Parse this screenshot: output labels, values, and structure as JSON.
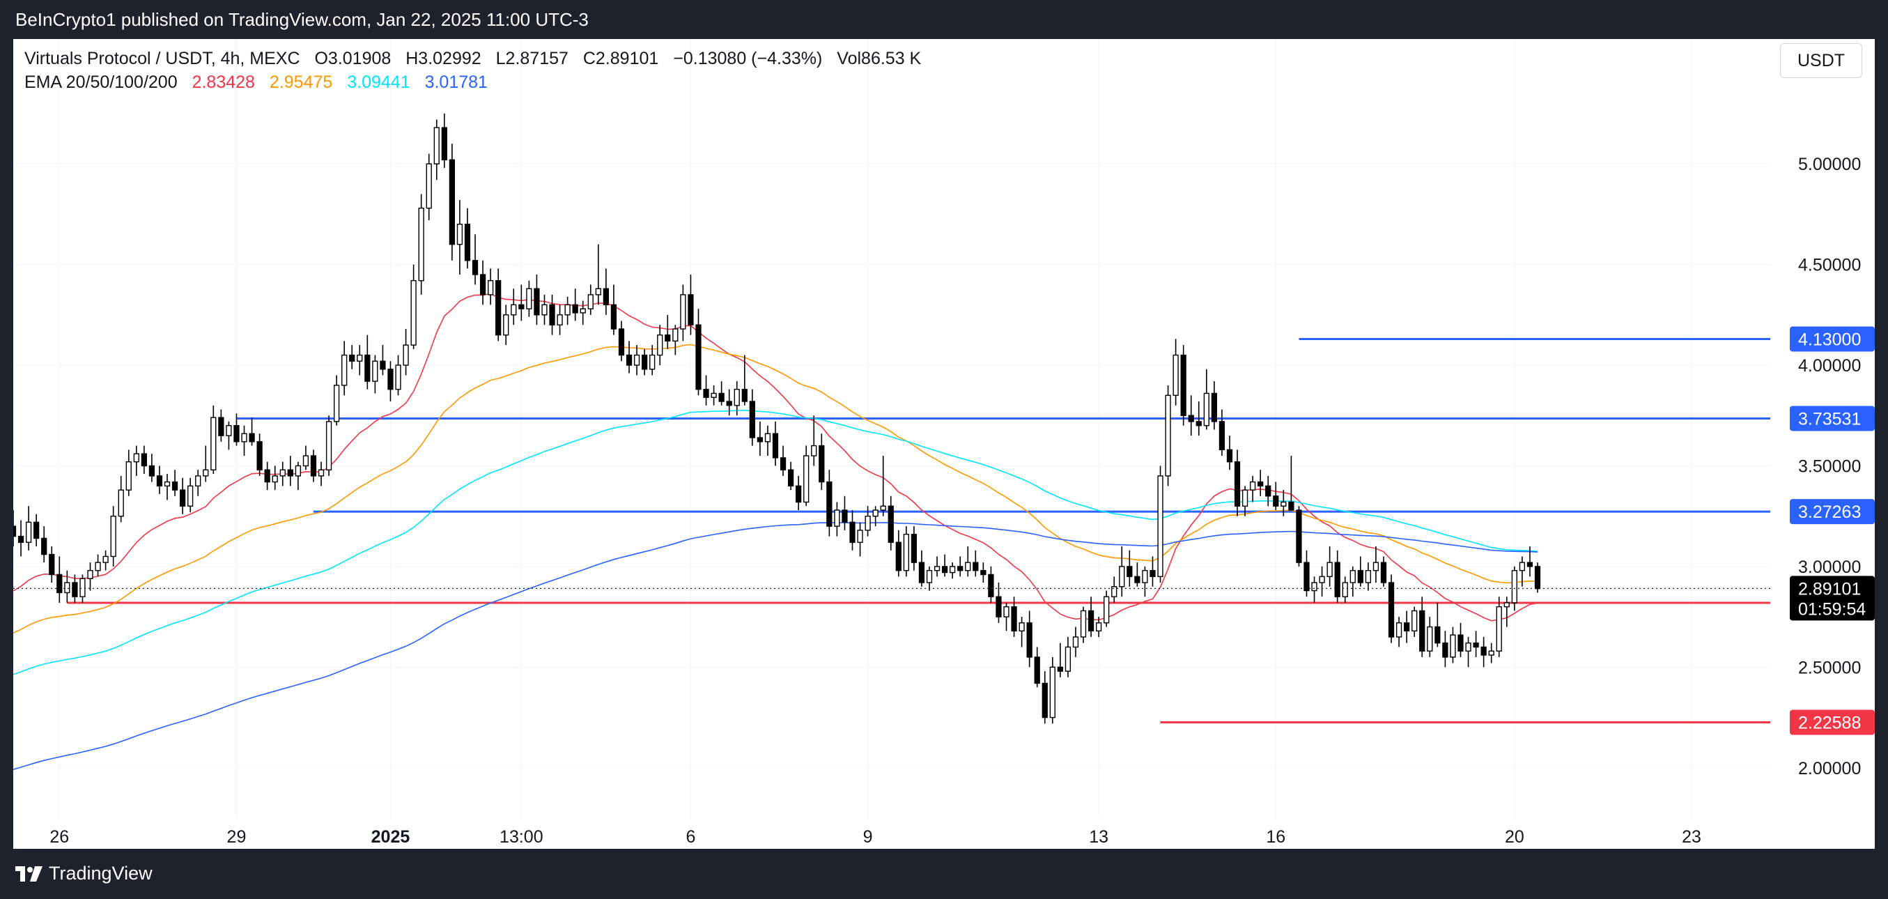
{
  "top_bar": {
    "text": "BeInCrypto1 published on TradingView.com, Jan 22, 2025 11:00 UTC-3"
  },
  "legend": {
    "symbol": "Virtuals Protocol / USDT, 4h, MEXC",
    "open": "O3.01908",
    "high": "H3.02992",
    "low": "L2.87157",
    "close": "C2.89101",
    "change": "−0.13080 (−4.33%)",
    "volume": "Vol86.53 K",
    "ema_label": "EMA 20/50/100/200",
    "ema_values": [
      {
        "text": "2.83428",
        "color": "#f23645"
      },
      {
        "text": "2.95475",
        "color": "#ff9800"
      },
      {
        "text": "3.09441",
        "color": "#00e5ff"
      },
      {
        "text": "3.01781",
        "color": "#2962ff"
      }
    ]
  },
  "currency_button": "USDT",
  "footer": {
    "brand": "TradingView"
  },
  "chart_data": {
    "type": "candlestick",
    "title": "Virtuals Protocol / USDT, 4h, MEXC",
    "ylim": [
      1.75,
      5.62
    ],
    "y_ticks": [
      "2.00000",
      "2.50000",
      "3.00000",
      "3.50000",
      "4.00000",
      "4.50000",
      "5.00000"
    ],
    "x_ticks": [
      "26",
      "29",
      "2025",
      "13:00",
      "6",
      "9",
      "13",
      "16",
      "20",
      "23"
    ],
    "grid": true,
    "last_price": {
      "value": "2.89101",
      "countdown": "01:59:54"
    },
    "price_levels": [
      {
        "value": 4.13,
        "label": "4.13000",
        "color": "#2962ff",
        "from_candle": 167
      },
      {
        "value": 3.73531,
        "label": "3.73531",
        "color": "#2962ff",
        "from_candle": 29
      },
      {
        "value": 3.27263,
        "label": "3.27263",
        "color": "#2962ff",
        "from_candle": 39
      },
      {
        "value": 2.81952,
        "label": "2.81952",
        "color": "#f23645",
        "from_candle": 7
      },
      {
        "value": 2.22588,
        "label": "2.22588",
        "color": "#f23645",
        "from_candle": 149
      }
    ],
    "ema_series": [
      {
        "name": "EMA 20",
        "period": 20,
        "color": "#f23645"
      },
      {
        "name": "EMA 50",
        "period": 50,
        "color": "#ff9800"
      },
      {
        "name": "EMA 100",
        "period": 100,
        "color": "#00e5ff"
      },
      {
        "name": "EMA 200",
        "period": 200,
        "color": "#2962ff"
      }
    ],
    "ema_seed": [
      2.85,
      2.65,
      2.45,
      1.98
    ],
    "ohlc": [
      [
        3.2,
        3.28,
        3.1,
        3.15
      ],
      [
        3.15,
        3.23,
        3.05,
        3.12
      ],
      [
        3.12,
        3.3,
        3.08,
        3.22
      ],
      [
        3.22,
        3.26,
        3.1,
        3.14
      ],
      [
        3.14,
        3.2,
        3.02,
        3.06
      ],
      [
        3.06,
        3.1,
        2.92,
        2.96
      ],
      [
        2.96,
        3.05,
        2.82,
        2.87
      ],
      [
        2.87,
        2.98,
        2.82,
        2.92
      ],
      [
        2.92,
        2.96,
        2.82,
        2.85
      ],
      [
        2.85,
        2.96,
        2.82,
        2.94
      ],
      [
        2.94,
        3.02,
        2.88,
        2.98
      ],
      [
        2.98,
        3.06,
        2.95,
        3.02
      ],
      [
        3.02,
        3.08,
        2.98,
        3.05
      ],
      [
        3.05,
        3.3,
        3.0,
        3.25
      ],
      [
        3.25,
        3.45,
        3.22,
        3.38
      ],
      [
        3.38,
        3.58,
        3.35,
        3.52
      ],
      [
        3.52,
        3.6,
        3.45,
        3.56
      ],
      [
        3.56,
        3.6,
        3.46,
        3.5
      ],
      [
        3.5,
        3.56,
        3.42,
        3.45
      ],
      [
        3.45,
        3.5,
        3.36,
        3.4
      ],
      [
        3.4,
        3.46,
        3.33,
        3.42
      ],
      [
        3.42,
        3.48,
        3.35,
        3.38
      ],
      [
        3.38,
        3.44,
        3.26,
        3.3
      ],
      [
        3.3,
        3.44,
        3.27,
        3.4
      ],
      [
        3.4,
        3.48,
        3.35,
        3.45
      ],
      [
        3.45,
        3.6,
        3.42,
        3.48
      ],
      [
        3.48,
        3.8,
        3.46,
        3.74
      ],
      [
        3.74,
        3.78,
        3.62,
        3.65
      ],
      [
        3.65,
        3.72,
        3.58,
        3.7
      ],
      [
        3.7,
        3.76,
        3.6,
        3.62
      ],
      [
        3.62,
        3.7,
        3.55,
        3.66
      ],
      [
        3.66,
        3.74,
        3.6,
        3.62
      ],
      [
        3.62,
        3.66,
        3.45,
        3.48
      ],
      [
        3.48,
        3.52,
        3.38,
        3.42
      ],
      [
        3.42,
        3.5,
        3.38,
        3.45
      ],
      [
        3.45,
        3.52,
        3.4,
        3.48
      ],
      [
        3.48,
        3.55,
        3.4,
        3.45
      ],
      [
        3.45,
        3.52,
        3.38,
        3.5
      ],
      [
        3.5,
        3.6,
        3.48,
        3.55
      ],
      [
        3.55,
        3.58,
        3.42,
        3.45
      ],
      [
        3.45,
        3.52,
        3.4,
        3.48
      ],
      [
        3.48,
        3.75,
        3.45,
        3.72
      ],
      [
        3.72,
        3.95,
        3.7,
        3.9
      ],
      [
        3.9,
        4.12,
        3.85,
        4.05
      ],
      [
        4.05,
        4.1,
        3.98,
        4.02
      ],
      [
        4.02,
        4.1,
        3.95,
        4.05
      ],
      [
        4.05,
        4.15,
        3.88,
        3.92
      ],
      [
        3.92,
        4.05,
        3.86,
        4.02
      ],
      [
        4.02,
        4.1,
        3.95,
        3.98
      ],
      [
        3.98,
        4.02,
        3.82,
        3.88
      ],
      [
        3.88,
        4.05,
        3.85,
        4.0
      ],
      [
        4.0,
        4.18,
        3.95,
        4.1
      ],
      [
        4.1,
        4.5,
        4.08,
        4.42
      ],
      [
        4.42,
        4.85,
        4.35,
        4.78
      ],
      [
        4.78,
        5.05,
        4.72,
        5.0
      ],
      [
        5.0,
        5.22,
        4.92,
        5.18
      ],
      [
        5.18,
        5.25,
        4.98,
        5.02
      ],
      [
        5.02,
        5.1,
        4.52,
        4.6
      ],
      [
        4.6,
        4.82,
        4.45,
        4.7
      ],
      [
        4.7,
        4.78,
        4.48,
        4.52
      ],
      [
        4.52,
        4.65,
        4.4,
        4.45
      ],
      [
        4.45,
        4.52,
        4.3,
        4.35
      ],
      [
        4.35,
        4.48,
        4.3,
        4.42
      ],
      [
        4.42,
        4.48,
        4.12,
        4.15
      ],
      [
        4.15,
        4.3,
        4.1,
        4.25
      ],
      [
        4.25,
        4.38,
        4.2,
        4.3
      ],
      [
        4.3,
        4.4,
        4.22,
        4.28
      ],
      [
        4.28,
        4.42,
        4.24,
        4.38
      ],
      [
        4.38,
        4.45,
        4.2,
        4.25
      ],
      [
        4.25,
        4.35,
        4.2,
        4.3
      ],
      [
        4.3,
        4.35,
        4.15,
        4.2
      ],
      [
        4.2,
        4.3,
        4.15,
        4.25
      ],
      [
        4.25,
        4.34,
        4.2,
        4.3
      ],
      [
        4.3,
        4.38,
        4.22,
        4.26
      ],
      [
        4.26,
        4.32,
        4.2,
        4.28
      ],
      [
        4.28,
        4.4,
        4.25,
        4.35
      ],
      [
        4.35,
        4.6,
        4.3,
        4.38
      ],
      [
        4.38,
        4.48,
        4.25,
        4.3
      ],
      [
        4.3,
        4.4,
        4.15,
        4.18
      ],
      [
        4.18,
        4.22,
        4.02,
        4.05
      ],
      [
        4.05,
        4.12,
        3.96,
        4.0
      ],
      [
        4.0,
        4.1,
        3.95,
        4.05
      ],
      [
        4.05,
        4.08,
        3.95,
        3.98
      ],
      [
        3.98,
        4.1,
        3.95,
        4.05
      ],
      [
        4.05,
        4.2,
        4.0,
        4.15
      ],
      [
        4.15,
        4.25,
        4.08,
        4.12
      ],
      [
        4.12,
        4.2,
        4.05,
        4.18
      ],
      [
        4.18,
        4.4,
        4.12,
        4.35
      ],
      [
        4.35,
        4.45,
        4.15,
        4.2
      ],
      [
        4.2,
        4.28,
        3.85,
        3.88
      ],
      [
        3.88,
        3.95,
        3.8,
        3.84
      ],
      [
        3.84,
        3.9,
        3.8,
        3.86
      ],
      [
        3.86,
        3.92,
        3.8,
        3.82
      ],
      [
        3.82,
        3.88,
        3.75,
        3.8
      ],
      [
        3.8,
        3.92,
        3.75,
        3.88
      ],
      [
        3.88,
        4.05,
        3.8,
        3.82
      ],
      [
        3.82,
        3.88,
        3.6,
        3.64
      ],
      [
        3.64,
        3.72,
        3.55,
        3.62
      ],
      [
        3.62,
        3.7,
        3.55,
        3.66
      ],
      [
        3.66,
        3.72,
        3.5,
        3.54
      ],
      [
        3.54,
        3.6,
        3.45,
        3.48
      ],
      [
        3.48,
        3.52,
        3.38,
        3.4
      ],
      [
        3.4,
        3.45,
        3.28,
        3.32
      ],
      [
        3.32,
        3.6,
        3.3,
        3.55
      ],
      [
        3.55,
        3.75,
        3.5,
        3.6
      ],
      [
        3.6,
        3.66,
        3.38,
        3.42
      ],
      [
        3.42,
        3.48,
        3.15,
        3.2
      ],
      [
        3.2,
        3.32,
        3.15,
        3.28
      ],
      [
        3.28,
        3.35,
        3.18,
        3.22
      ],
      [
        3.22,
        3.28,
        3.08,
        3.12
      ],
      [
        3.12,
        3.22,
        3.05,
        3.18
      ],
      [
        3.18,
        3.3,
        3.15,
        3.25
      ],
      [
        3.25,
        3.3,
        3.2,
        3.28
      ],
      [
        3.28,
        3.55,
        3.25,
        3.3
      ],
      [
        3.3,
        3.35,
        3.08,
        3.12
      ],
      [
        3.12,
        3.18,
        2.95,
        2.98
      ],
      [
        2.98,
        3.2,
        2.95,
        3.16
      ],
      [
        3.16,
        3.2,
        2.98,
        3.02
      ],
      [
        3.02,
        3.08,
        2.9,
        2.92
      ],
      [
        2.92,
        3.0,
        2.88,
        2.98
      ],
      [
        2.98,
        3.05,
        2.95,
        3.0
      ],
      [
        3.0,
        3.06,
        2.95,
        2.97
      ],
      [
        2.97,
        3.02,
        2.94,
        3.0
      ],
      [
        3.0,
        3.05,
        2.95,
        2.98
      ],
      [
        2.98,
        3.1,
        2.95,
        3.02
      ],
      [
        3.02,
        3.08,
        2.95,
        2.98
      ],
      [
        2.98,
        3.02,
        2.92,
        2.96
      ],
      [
        2.96,
        3.0,
        2.82,
        2.85
      ],
      [
        2.85,
        2.92,
        2.72,
        2.75
      ],
      [
        2.75,
        2.82,
        2.68,
        2.8
      ],
      [
        2.8,
        2.85,
        2.65,
        2.68
      ],
      [
        2.68,
        2.75,
        2.6,
        2.72
      ],
      [
        2.72,
        2.78,
        2.5,
        2.55
      ],
      [
        2.55,
        2.6,
        2.4,
        2.42
      ],
      [
        2.42,
        2.48,
        2.22,
        2.25
      ],
      [
        2.25,
        2.55,
        2.22,
        2.5
      ],
      [
        2.5,
        2.62,
        2.45,
        2.48
      ],
      [
        2.48,
        2.65,
        2.45,
        2.6
      ],
      [
        2.6,
        2.7,
        2.55,
        2.65
      ],
      [
        2.65,
        2.8,
        2.62,
        2.78
      ],
      [
        2.78,
        2.85,
        2.65,
        2.68
      ],
      [
        2.68,
        2.75,
        2.65,
        2.72
      ],
      [
        2.72,
        2.88,
        2.7,
        2.85
      ],
      [
        2.85,
        2.95,
        2.82,
        2.9
      ],
      [
        2.9,
        3.1,
        2.85,
        3.0
      ],
      [
        3.0,
        3.08,
        2.9,
        2.95
      ],
      [
        2.95,
        3.02,
        2.9,
        2.92
      ],
      [
        2.92,
        3.0,
        2.85,
        2.98
      ],
      [
        2.98,
        3.05,
        2.9,
        2.95
      ],
      [
        2.95,
        3.5,
        2.92,
        3.45
      ],
      [
        3.45,
        3.9,
        3.4,
        3.85
      ],
      [
        3.85,
        4.13,
        3.8,
        4.05
      ],
      [
        4.05,
        4.1,
        3.7,
        3.75
      ],
      [
        3.75,
        3.85,
        3.65,
        3.72
      ],
      [
        3.72,
        3.82,
        3.65,
        3.7
      ],
      [
        3.7,
        3.98,
        3.68,
        3.86
      ],
      [
        3.86,
        3.92,
        3.68,
        3.72
      ],
      [
        3.72,
        3.78,
        3.55,
        3.58
      ],
      [
        3.58,
        3.65,
        3.48,
        3.52
      ],
      [
        3.52,
        3.58,
        3.25,
        3.3
      ],
      [
        3.3,
        3.4,
        3.25,
        3.38
      ],
      [
        3.38,
        3.45,
        3.32,
        3.42
      ],
      [
        3.42,
        3.48,
        3.35,
        3.4
      ],
      [
        3.4,
        3.45,
        3.3,
        3.35
      ],
      [
        3.35,
        3.42,
        3.28,
        3.3
      ],
      [
        3.3,
        3.38,
        3.25,
        3.32
      ],
      [
        3.32,
        3.55,
        3.28,
        3.28
      ],
      [
        3.28,
        3.3,
        3.0,
        3.02
      ],
      [
        3.02,
        3.08,
        2.85,
        2.88
      ],
      [
        2.88,
        2.95,
        2.82,
        2.92
      ],
      [
        2.92,
        3.0,
        2.85,
        2.95
      ],
      [
        2.95,
        3.1,
        2.9,
        3.02
      ],
      [
        3.02,
        3.08,
        2.82,
        2.85
      ],
      [
        2.85,
        2.95,
        2.82,
        2.92
      ],
      [
        2.92,
        3.0,
        2.85,
        2.98
      ],
      [
        2.98,
        3.05,
        2.9,
        2.92
      ],
      [
        2.92,
        3.02,
        2.88,
        2.98
      ],
      [
        2.98,
        3.1,
        2.92,
        3.02
      ],
      [
        3.02,
        3.05,
        2.9,
        2.92
      ],
      [
        2.92,
        2.96,
        2.62,
        2.65
      ],
      [
        2.65,
        2.75,
        2.6,
        2.72
      ],
      [
        2.72,
        2.78,
        2.62,
        2.68
      ],
      [
        2.68,
        2.8,
        2.65,
        2.78
      ],
      [
        2.78,
        2.85,
        2.55,
        2.58
      ],
      [
        2.58,
        2.75,
        2.55,
        2.7
      ],
      [
        2.7,
        2.82,
        2.6,
        2.62
      ],
      [
        2.62,
        2.68,
        2.5,
        2.55
      ],
      [
        2.55,
        2.7,
        2.52,
        2.66
      ],
      [
        2.66,
        2.72,
        2.55,
        2.58
      ],
      [
        2.58,
        2.65,
        2.5,
        2.62
      ],
      [
        2.62,
        2.68,
        2.55,
        2.6
      ],
      [
        2.6,
        2.65,
        2.5,
        2.56
      ],
      [
        2.56,
        2.62,
        2.52,
        2.58
      ],
      [
        2.58,
        2.85,
        2.55,
        2.8
      ],
      [
        2.8,
        2.85,
        2.7,
        2.82
      ],
      [
        2.82,
        3.0,
        2.78,
        2.98
      ],
      [
        2.98,
        3.05,
        2.9,
        3.02
      ],
      [
        3.02,
        3.1,
        2.95,
        3.0
      ],
      [
        3.0,
        3.02,
        2.87,
        2.89
      ]
    ]
  }
}
